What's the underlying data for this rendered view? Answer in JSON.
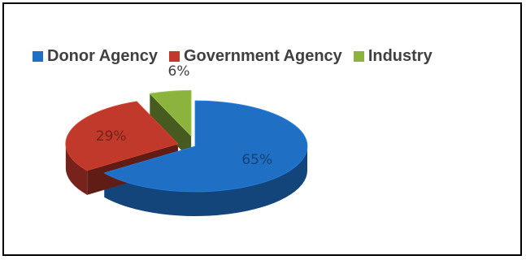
{
  "chart_data": {
    "type": "pie",
    "variant": "3d-exploded",
    "legend_position": "top",
    "slices": [
      {
        "name": "Donor Agency",
        "value": 65,
        "label": "65%",
        "color": "#1F6FC5"
      },
      {
        "name": "Government Agency",
        "value": 29,
        "label": "29%",
        "color": "#C0392B"
      },
      {
        "name": "Industry",
        "value": 6,
        "label": "6%",
        "color": "#8DB33F"
      }
    ]
  }
}
